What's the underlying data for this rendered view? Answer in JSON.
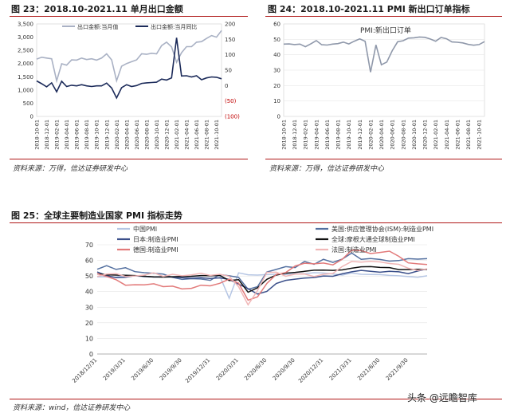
{
  "figure23": {
    "title": "图 23：2018.10-2021.11 单月出口金额",
    "source": "资料来源：万得，信达证券研发中心"
  },
  "figure24": {
    "title": "图 24：2018.10-2021.11 PMI 新出口订单指标",
    "source": "资料来源：万得，信达证券研发中心"
  },
  "figure25": {
    "title": "图 25：全球主要制造业国家 PMI 指标走势",
    "source": "资料来源：wind，信达证券研发中心"
  },
  "watermark": "头条 @远瞻智库",
  "colors": {
    "rule": "#b01818",
    "export_value": "#a9b1c4",
    "export_yoy": "#1c2b5a",
    "pmi_new_export": "#8f98aa",
    "china": "#b6c6e4",
    "usa": "#5470a0",
    "japan": "#3a4f8a",
    "global": "#111111",
    "germany": "#e27a7a",
    "france": "#f0b6b6",
    "negative_label": "#c00000"
  },
  "chart_data": [
    {
      "type": "line",
      "x": [
        "2018-10-01",
        "2018-11-01",
        "2018-12-01",
        "2019-01-01",
        "2019-02-01",
        "2019-03-01",
        "2019-04-01",
        "2019-05-01",
        "2019-06-01",
        "2019-07-01",
        "2019-08-01",
        "2019-09-01",
        "2019-10-01",
        "2019-11-01",
        "2019-12-01",
        "2020-01-01",
        "2020-02-01",
        "2020-03-01",
        "2020-04-01",
        "2020-05-01",
        "2020-06-01",
        "2020-07-01",
        "2020-08-01",
        "2020-09-01",
        "2020-10-01",
        "2020-11-01",
        "2020-12-01",
        "2021-01-01",
        "2021-02-01",
        "2021-03-01",
        "2021-04-01",
        "2021-05-01",
        "2021-06-01",
        "2021-07-01",
        "2021-08-01",
        "2021-09-01",
        "2021-10-01",
        "2021-11-01"
      ],
      "x_tick_labels": [
        "2018-10-01",
        "2018-12-01",
        "2019-02-01",
        "2019-04-01",
        "2019-06-01",
        "2019-08-01",
        "2019-10-01",
        "2019-12-01",
        "2020-02-01",
        "2020-04-01",
        "2020-06-01",
        "2020-08-01",
        "2020-10-01",
        "2020-12-01",
        "2021-02-01",
        "2021-04-01",
        "2021-06-01",
        "2021-08-01",
        "2021-10-01"
      ],
      "series": [
        {
          "name": "出口金额:当月值",
          "axis": "left",
          "values": [
            2170,
            2240,
            2210,
            2180,
            1350,
            1990,
            1940,
            2140,
            2130,
            2210,
            2150,
            2180,
            2130,
            2210,
            2370,
            2140,
            1350,
            1900,
            2000,
            2070,
            2140,
            2370,
            2350,
            2390,
            2370,
            2680,
            2810,
            2630,
            2050,
            2410,
            2640,
            2640,
            2810,
            2830,
            2950,
            3060,
            3000,
            3250
          ]
        },
        {
          "name": "出口金额:当月同比",
          "axis": "right",
          "values": [
            15,
            6,
            -4,
            9,
            -20,
            14,
            -3,
            1,
            -1,
            3,
            -1,
            -3,
            -1,
            -1,
            8,
            -8,
            -40,
            -7,
            3,
            -3,
            0,
            7,
            9,
            10,
            11,
            21,
            18,
            25,
            155,
            31,
            32,
            28,
            32,
            19,
            25,
            28,
            27,
            22
          ]
        }
      ],
      "left_axis": {
        "ylim": [
          0,
          3500
        ],
        "ticks": [
          "0",
          "500",
          "1,000",
          "1,500",
          "2,000",
          "2,500",
          "3,000",
          "3,500"
        ]
      },
      "right_axis": {
        "ylim": [
          -100,
          200
        ],
        "ticks": [
          "200",
          "150",
          "100",
          "50",
          "0",
          "(50)",
          "(100)"
        ]
      },
      "legend_placement": "top-center"
    },
    {
      "type": "line",
      "x": [
        "2018-10-01",
        "2018-11-01",
        "2018-12-01",
        "2019-01-01",
        "2019-02-01",
        "2019-03-01",
        "2019-04-01",
        "2019-05-01",
        "2019-06-01",
        "2019-07-01",
        "2019-08-01",
        "2019-09-01",
        "2019-10-01",
        "2019-11-01",
        "2019-12-01",
        "2020-01-01",
        "2020-02-01",
        "2020-03-01",
        "2020-04-01",
        "2020-05-01",
        "2020-06-01",
        "2020-07-01",
        "2020-08-01",
        "2020-09-01",
        "2020-10-01",
        "2020-11-01",
        "2020-12-01",
        "2021-01-01",
        "2021-02-01",
        "2021-03-01",
        "2021-04-01",
        "2021-05-01",
        "2021-06-01",
        "2021-07-01",
        "2021-08-01",
        "2021-09-01",
        "2021-10-01",
        "2021-11-01"
      ],
      "x_tick_labels": [
        "2018-10-01",
        "2018-12-01",
        "2019-02-01",
        "2019-04-01",
        "2019-06-01",
        "2019-08-01",
        "2019-10-01",
        "2019-12-01",
        "2020-02-01",
        "2020-04-01",
        "2020-06-01",
        "2020-08-01",
        "2020-10-01",
        "2020-12-01",
        "2021-02-01",
        "2021-04-01",
        "2021-06-01",
        "2021-08-01",
        "2021-10-01"
      ],
      "series": [
        {
          "name": "PMI:新出口订单",
          "values": [
            46.9,
            47.0,
            46.6,
            46.9,
            45.2,
            47.1,
            49.2,
            46.5,
            46.3,
            46.9,
            47.2,
            48.2,
            47.0,
            48.8,
            50.3,
            48.7,
            28.7,
            46.4,
            33.5,
            35.3,
            42.6,
            48.4,
            49.1,
            50.8,
            51.0,
            51.5,
            51.3,
            50.2,
            48.8,
            51.2,
            50.4,
            48.3,
            48.1,
            47.7,
            46.7,
            46.2,
            46.6,
            48.5
          ]
        }
      ],
      "ylim": [
        0,
        60
      ],
      "y_ticks": [
        "0",
        "10",
        "20",
        "30",
        "40",
        "50",
        "60"
      ],
      "legend_placement": "top-left"
    },
    {
      "type": "line",
      "x": [
        "2018-12-31",
        "2019-01-31",
        "2019-02-28",
        "2019-03-31",
        "2019-04-30",
        "2019-05-31",
        "2019-06-30",
        "2019-07-31",
        "2019-08-31",
        "2019-09-30",
        "2019-10-31",
        "2019-11-30",
        "2019-12-31",
        "2020-01-31",
        "2020-02-29",
        "2020-03-31",
        "2020-04-30",
        "2020-05-31",
        "2020-06-30",
        "2020-07-31",
        "2020-08-31",
        "2020-09-30",
        "2020-10-31",
        "2020-11-30",
        "2020-12-31",
        "2021-01-31",
        "2021-02-28",
        "2021-03-31",
        "2021-04-30",
        "2021-05-31",
        "2021-06-30",
        "2021-07-31",
        "2021-08-31",
        "2021-09-30",
        "2021-10-31",
        "2021-11-30"
      ],
      "x_tick_labels": [
        "2018/12/31",
        "2019/3/31",
        "2019/6/30",
        "2019/9/30",
        "2019/12/31",
        "2020/3/31",
        "2020/6/30",
        "2020/9/30",
        "2020/12/31",
        "2021/3/31",
        "2021/6/30",
        "2021/9/30"
      ],
      "series": [
        {
          "name": "中国PMI",
          "color_key": "china",
          "values": [
            49.4,
            49.5,
            49.2,
            50.5,
            50.1,
            49.4,
            49.4,
            49.7,
            49.5,
            49.8,
            49.3,
            50.2,
            50.2,
            50.0,
            35.7,
            52.0,
            50.8,
            50.6,
            50.9,
            51.1,
            51.0,
            51.5,
            51.4,
            52.1,
            51.9,
            51.3,
            50.6,
            51.9,
            51.1,
            51.0,
            50.9,
            50.4,
            50.1,
            49.6,
            49.2,
            50.1
          ]
        },
        {
          "name": "美国:供应管理协会(ISM):制造业PMI",
          "color_key": "usa",
          "values": [
            54.3,
            56.6,
            54.2,
            55.3,
            52.8,
            52.1,
            51.7,
            51.2,
            49.1,
            47.8,
            48.3,
            48.1,
            47.2,
            50.9,
            50.1,
            49.1,
            41.5,
            43.1,
            52.6,
            54.2,
            56.0,
            55.4,
            59.3,
            57.5,
            60.7,
            58.7,
            60.8,
            64.7,
            60.7,
            61.2,
            60.6,
            59.5,
            59.9,
            61.1,
            60.8,
            61.1
          ]
        },
        {
          "name": "日本:制造业PMI",
          "color_key": "japan",
          "values": [
            52.6,
            50.3,
            48.9,
            49.2,
            50.2,
            49.8,
            49.3,
            49.4,
            49.3,
            48.9,
            48.4,
            48.9,
            48.4,
            48.8,
            47.8,
            44.8,
            41.9,
            38.4,
            40.1,
            45.2,
            47.2,
            48.0,
            48.7,
            49.0,
            50.0,
            49.8,
            51.4,
            52.7,
            53.6,
            53.0,
            52.4,
            53.0,
            52.7,
            51.5,
            53.2,
            54.5
          ]
        },
        {
          "name": "全球:摩根大通全球制造业PMI",
          "color_key": "global",
          "values": [
            51.4,
            50.8,
            50.6,
            50.5,
            50.3,
            49.8,
            49.4,
            49.3,
            49.5,
            49.7,
            49.8,
            50.3,
            50.1,
            50.4,
            47.1,
            47.6,
            39.6,
            42.4,
            47.9,
            50.6,
            51.8,
            52.3,
            53.0,
            53.7,
            53.8,
            53.6,
            53.9,
            55.0,
            55.9,
            56.0,
            55.5,
            55.4,
            54.1,
            54.1,
            54.3,
            54.2
          ]
        },
        {
          "name": "德国:制造业PMI",
          "color_key": "germany",
          "values": [
            51.5,
            49.7,
            47.6,
            44.1,
            44.4,
            44.3,
            45.0,
            43.2,
            43.5,
            41.7,
            42.1,
            44.1,
            43.7,
            45.3,
            48.0,
            45.4,
            34.5,
            36.6,
            45.2,
            51.0,
            52.2,
            56.4,
            58.2,
            57.8,
            58.3,
            57.1,
            60.7,
            66.6,
            66.2,
            64.4,
            65.1,
            65.9,
            62.6,
            58.4,
            57.8,
            57.4
          ]
        },
        {
          "name": "法国:制造业PMI",
          "color_key": "france",
          "values": [
            49.7,
            51.2,
            51.5,
            49.7,
            50.0,
            50.6,
            52.0,
            49.7,
            51.1,
            50.1,
            50.7,
            51.7,
            50.4,
            51.1,
            49.8,
            43.2,
            31.5,
            40.6,
            52.3,
            52.4,
            49.8,
            51.2,
            51.3,
            49.6,
            51.1,
            51.6,
            56.1,
            59.3,
            58.9,
            59.4,
            59.0,
            58.0,
            57.5,
            55.0,
            53.6,
            54.6
          ]
        }
      ],
      "ylim": [
        0,
        70
      ],
      "y_ticks": [
        "0",
        "10",
        "20",
        "30",
        "40",
        "50",
        "60",
        "70"
      ],
      "legend_placement": "top"
    }
  ]
}
